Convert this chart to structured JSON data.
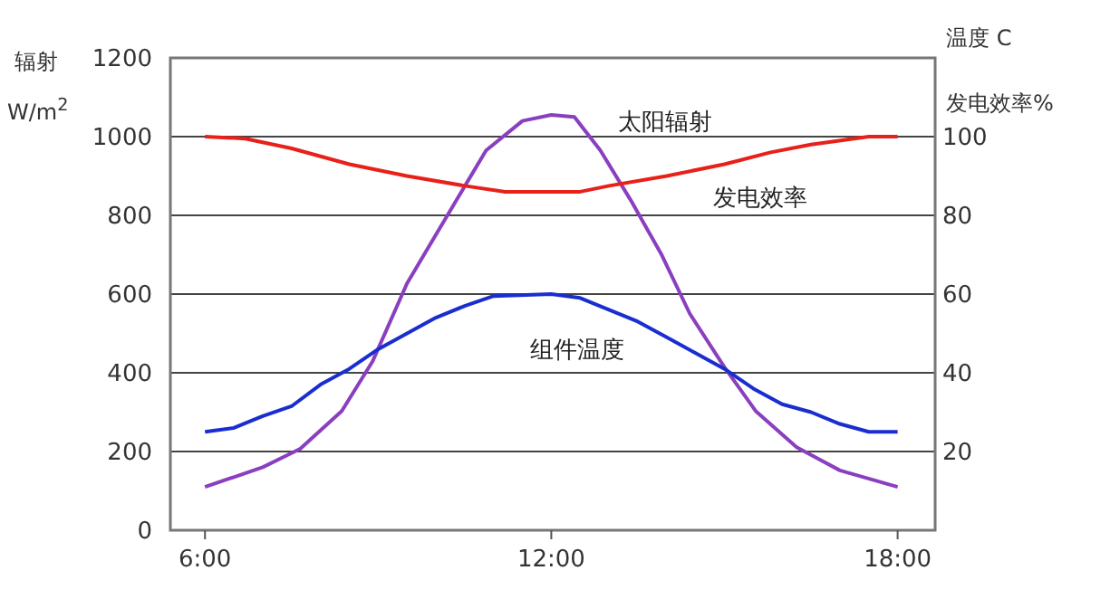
{
  "chart_data": {
    "type": "line",
    "ylabel": "辐射\nW/m$^{2}$",
    "y2label": "温度 C\n发电效率%",
    "xlim": [
      5.4,
      18.65
    ],
    "xticks": [
      {
        "value": 6,
        "label": "6:00"
      },
      {
        "value": 12,
        "label": "12:00"
      },
      {
        "value": 18,
        "label": "18:00"
      }
    ],
    "ylim": [
      0,
      1200
    ],
    "yticks": [
      0,
      200,
      400,
      600,
      800,
      1000,
      1200
    ],
    "y2lim": [
      0,
      120
    ],
    "y2ticks": [
      20,
      40,
      60,
      80,
      100
    ],
    "grid": "y",
    "marker": "none",
    "line_style": "solid",
    "series": [
      {
        "name": "太阳辐射",
        "color": "#8a3fbf",
        "x": [
          6,
          6.5,
          7,
          7.65,
          8.37,
          8.9,
          9.5,
          10.24,
          10.87,
          11.5,
          12,
          12.4,
          12.85,
          13.37,
          13.9,
          14.4,
          15,
          15.54,
          16.25,
          17,
          18
        ],
        "values": [
          110,
          135,
          160,
          207,
          303,
          428,
          627,
          810,
          965,
          1040,
          1055,
          1050,
          965,
          840,
          703,
          550,
          414,
          303,
          211,
          152,
          110
        ]
      },
      {
        "name": "发电效率",
        "color": "#e8201a",
        "axis": "y2",
        "x": [
          6,
          6.7,
          7.5,
          8.5,
          9.5,
          10.5,
          11.2,
          12,
          12.5,
          13,
          14,
          15,
          15.8,
          16.5,
          17.5,
          18
        ],
        "values": [
          100,
          99.5,
          97,
          93,
          90,
          87.5,
          86,
          86,
          86,
          87.5,
          90,
          93,
          96,
          98,
          100,
          100
        ]
      },
      {
        "name": "组件温度",
        "color": "#1a2ed0",
        "axis": "y2",
        "x": [
          6,
          6.5,
          7,
          7.5,
          8,
          8.5,
          9,
          9.5,
          10,
          10.5,
          11,
          12,
          12.5,
          13,
          13.5,
          14,
          14.5,
          15,
          15.5,
          16,
          16.5,
          17,
          17.5,
          18
        ],
        "values": [
          25,
          26,
          29,
          31.5,
          37,
          41,
          46,
          50,
          54,
          57,
          59.5,
          60,
          59,
          56,
          53,
          49,
          45,
          41,
          36,
          32,
          30,
          27,
          25,
          25
        ]
      }
    ]
  }
}
